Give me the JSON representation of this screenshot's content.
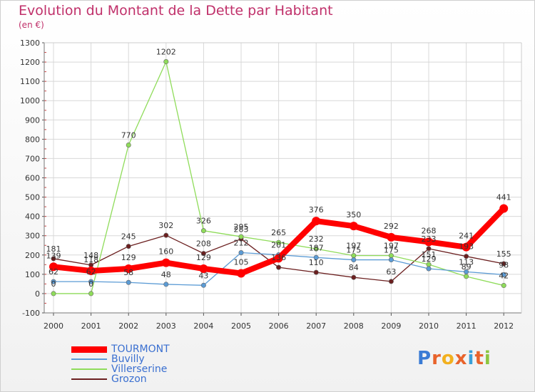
{
  "header": {
    "title": "Evolution du Montant de la Dette par Habitant",
    "subtitle": "(en €)"
  },
  "brand": {
    "text": "Proxiti"
  },
  "chart_data": {
    "type": "line",
    "x": [
      "2000",
      "2001",
      "2002",
      "2003",
      "2004",
      "2005",
      "2006",
      "2007",
      "2008",
      "2009",
      "2010",
      "2011",
      "2012"
    ],
    "ylim": [
      -100,
      1300
    ],
    "yticks": [
      -100,
      0,
      100,
      200,
      300,
      400,
      500,
      600,
      700,
      800,
      900,
      1000,
      1100,
      1200,
      1300
    ],
    "grid": true,
    "legend_position": "bottom-left",
    "series": [
      {
        "name": "TOURMONT",
        "color": "#ff0000",
        "values": [
          139,
          118,
          129,
          160,
          129,
          105,
          183,
          376,
          350,
          292,
          268,
          241,
          441
        ],
        "labels": [
          "139",
          "118",
          "129",
          "160",
          "129",
          "105",
          "",
          "376",
          "350",
          "292",
          "268",
          "241",
          "441"
        ]
      },
      {
        "name": "Buvilly",
        "color": "#5b9bd5",
        "values": [
          62,
          62,
          58,
          48,
          43,
          212,
          201,
          187,
          175,
          175,
          129,
          113,
          98
        ],
        "labels": [
          "62",
          "62",
          "58",
          "48",
          "43",
          "212",
          "201",
          "187",
          "175",
          "175",
          "129",
          "113",
          "98"
        ]
      },
      {
        "name": "Villerserine",
        "color": "#8fdc5a",
        "values": [
          0,
          0,
          770,
          1202,
          326,
          295,
          265,
          232,
          197,
          197,
          151,
          89,
          42
        ],
        "labels": [
          "0",
          "0",
          "770",
          "1202",
          "326",
          "295",
          "265",
          "232",
          "197",
          "197",
          "151",
          "89",
          "42"
        ]
      },
      {
        "name": "Grozon",
        "color": "#6b1f1f",
        "values": [
          181,
          148,
          245,
          302,
          208,
          283,
          136,
          110,
          84,
          63,
          233,
          193,
          155
        ],
        "labels": [
          "181",
          "148",
          "245",
          "302",
          "208",
          "283",
          "136",
          "110",
          "84",
          "63",
          "233",
          "193",
          "155"
        ]
      }
    ]
  }
}
